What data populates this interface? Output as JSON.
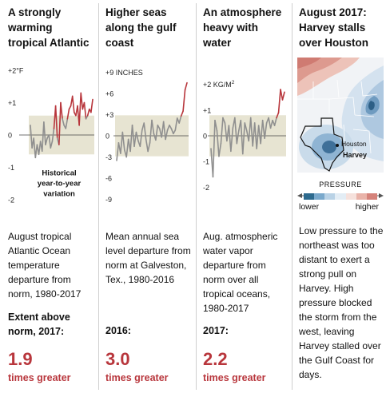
{
  "chart_data": [
    {
      "type": "line",
      "title": "A strongly warming tropical Atlantic",
      "unit": "°F",
      "x_range": [
        1980,
        2017
      ],
      "ylim": [
        -2.2,
        2.2
      ],
      "yticks": [
        "+2°F",
        "+1",
        "0",
        "-1",
        "-2"
      ],
      "ytick_values": [
        2,
        1,
        0,
        -1,
        -2
      ],
      "band": [
        -0.6,
        0.6
      ],
      "band_label": [
        "Historical",
        "year-to-year",
        "variation"
      ],
      "values": [
        0.3,
        -0.4,
        -0.1,
        -0.7,
        -0.3,
        -0.6,
        -0.2,
        -0.5,
        0.4,
        -0.3,
        -0.1,
        0.0,
        -0.4,
        -0.2,
        0.2,
        0.9,
        -0.1,
        -0.3,
        1.0,
        0.5,
        0.3,
        0.2,
        0.5,
        0.8,
        0.9,
        1.2,
        0.7,
        0.6,
        0.9,
        0.3,
        1.3,
        0.8,
        1.0,
        0.5,
        0.6,
        0.8,
        0.7,
        1.1
      ],
      "description": "August tropical Atlantic Ocean temperature departure from norm, 1980-2017",
      "extent_label": "Extent above norm, 2017:",
      "big_value": "1.9",
      "big_suffix": "times greater"
    },
    {
      "type": "line",
      "title": "Higher seas along the gulf coast",
      "unit": "INCHES",
      "x_range": [
        1980,
        2016
      ],
      "ylim": [
        -9.5,
        9.5
      ],
      "yticks": [
        "+9 INCHES",
        "+6",
        "+3",
        "0",
        "-3",
        "-6",
        "-9"
      ],
      "ytick_values": [
        9,
        6,
        3,
        0,
        -3,
        -6,
        -9
      ],
      "band": [
        -2.9,
        2.9
      ],
      "values": [
        -3.5,
        -1.0,
        -2.5,
        0.5,
        -2.0,
        -3.0,
        -0.5,
        -2.2,
        1.5,
        -1.5,
        0.5,
        -0.7,
        -1.5,
        0.8,
        1.8,
        -0.5,
        -2.2,
        -1.0,
        2.2,
        0.3,
        -0.6,
        1.5,
        1.0,
        -0.2,
        2.0,
        -0.5,
        0.8,
        1.5,
        1.0,
        0.3,
        0.8,
        2.5,
        1.8,
        2.8,
        3.5,
        6.5,
        7.5
      ],
      "description": "Mean annual sea level departure from norm at Galveston, Tex., 1980-2016",
      "extent_label": "2016:",
      "big_value": "3.0",
      "big_suffix": "times greater"
    },
    {
      "type": "line",
      "title": "An atmosphere heavy with water",
      "unit": "KG/M2",
      "x_range": [
        1980,
        2017
      ],
      "ylim": [
        -2.3,
        2.3
      ],
      "yticks": [
        "+2 KG/M2",
        "+1",
        "0",
        "-1",
        "-2"
      ],
      "ytick_values": [
        2,
        1,
        0,
        -1,
        -2
      ],
      "band": [
        -0.8,
        0.8
      ],
      "values": [
        -0.5,
        -1.6,
        0.6,
        0.2,
        -0.8,
        -0.3,
        0.7,
        0.5,
        -0.2,
        0.4,
        -0.6,
        0.3,
        0.7,
        -0.3,
        0.2,
        0.6,
        -0.7,
        0.5,
        0.2,
        -0.2,
        0.7,
        -0.4,
        0.5,
        -0.5,
        0.4,
        -0.3,
        0.6,
        -0.1,
        0.5,
        0.7,
        0.3,
        0.6,
        0.4,
        0.7,
        0.9,
        1.8,
        1.4,
        1.7
      ],
      "description": "Aug. atmospheric water vapor departure from norm over all tropical oceans, 1980-2017",
      "extent_label": "2017:",
      "big_value": "2.2",
      "big_suffix": "times greater"
    }
  ],
  "map": {
    "title": "August 2017: Harvey stalls over Houston",
    "label_houston": "Houston",
    "label_harvey": "Harvey",
    "legend_title": "PRESSURE",
    "legend_lower": "lower",
    "legend_higher": "higher",
    "legend_colors": [
      "#2d6a8e",
      "#7aa9cc",
      "#b9d2e6",
      "#e3edf5",
      "#f6e1dc",
      "#e9b3a9",
      "#d5827a"
    ],
    "description": "Low pressure to the northeast was too distant to exert a strong pull on Harvey. High pressure blocked the storm from the west, leaving Harvey stalled over the Gulf Coast for days."
  },
  "colors": {
    "accent": "#b8363c",
    "gray_line": "#8f8f8f",
    "band": "#e7e4d2"
  }
}
